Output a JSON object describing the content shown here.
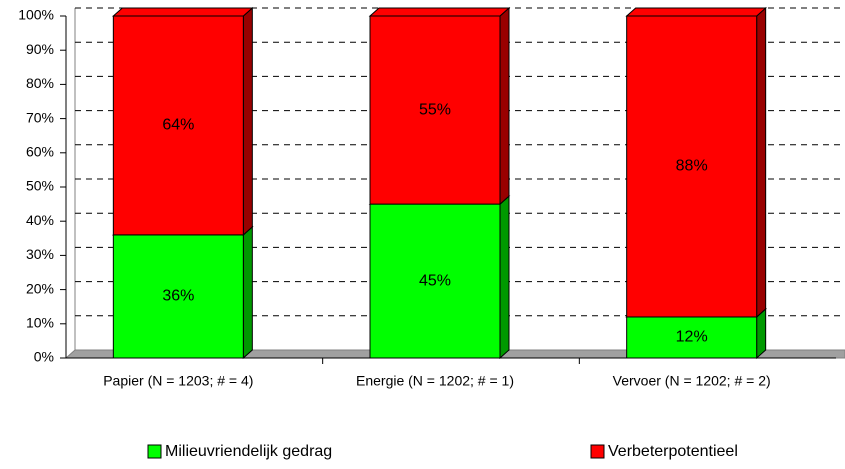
{
  "chart_data": {
    "type": "stacked_bar",
    "categories": [
      "Papier (N = 1203; # = 4)",
      "Energie (N = 1202; # = 1)",
      "Vervoer (N = 1202; # = 2)"
    ],
    "series": [
      {
        "name": "Milieuvriendelijk gedrag",
        "color": "#00ff00",
        "side_color": "#009900",
        "values": [
          36,
          45,
          12
        ],
        "value_labels": [
          "36%",
          "45%",
          "12%"
        ]
      },
      {
        "name": "Verbeterpotentieel",
        "color": "#ff0000",
        "side_color": "#990000",
        "values": [
          64,
          55,
          88
        ],
        "value_labels": [
          "64%",
          "55%",
          "88%"
        ]
      }
    ],
    "ylim": [
      0,
      100
    ],
    "yticks": [
      {
        "value": 0,
        "label": "0%"
      },
      {
        "value": 10,
        "label": "10%"
      },
      {
        "value": 20,
        "label": "20%"
      },
      {
        "value": 30,
        "label": "30%"
      },
      {
        "value": 40,
        "label": "40%"
      },
      {
        "value": 50,
        "label": "50%"
      },
      {
        "value": 60,
        "label": "60%"
      },
      {
        "value": 70,
        "label": "70%"
      },
      {
        "value": 80,
        "label": "80%"
      },
      {
        "value": 90,
        "label": "90%"
      },
      {
        "value": 100,
        "label": "100%"
      }
    ],
    "grid": true,
    "legend": "bottom"
  }
}
